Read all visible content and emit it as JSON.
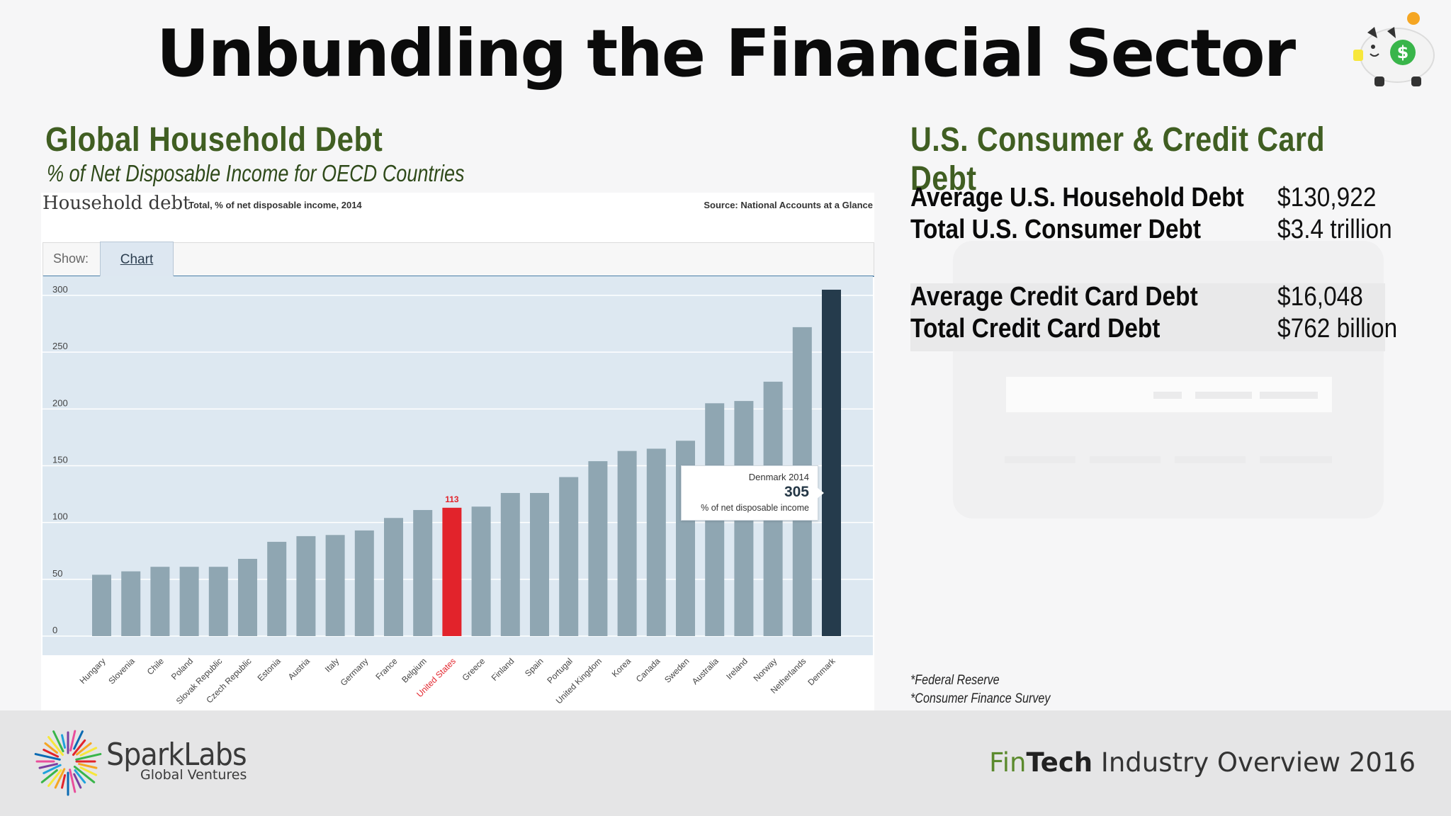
{
  "slide": {
    "title": "Unbundling the Financial Sector"
  },
  "left": {
    "section_title": "Global Household Debt",
    "subtitle": "% of Net Disposable Income for OECD Countries",
    "embedded_chart": {
      "heading": "Household debt",
      "subheading": "Total, % of net disposable income, 2014",
      "source": "Source: National Accounts at a Glance",
      "show_label": "Show:",
      "tab_label": "Chart",
      "tooltip": {
        "title": "Denmark 2014",
        "value": "305",
        "unit": "% of net disposable income"
      },
      "highlight_label": "113"
    }
  },
  "chart_data": {
    "type": "bar",
    "title": "Household debt",
    "subtitle": "Total, % of net disposable income, 2014",
    "ylim": [
      0,
      300
    ],
    "yticks": [
      0,
      50,
      100,
      150,
      200,
      250,
      300
    ],
    "grid": true,
    "categories": [
      "Hungary",
      "Slovenia",
      "Chile",
      "Poland",
      "Slovak Republic",
      "Czech Republic",
      "Estonia",
      "Austria",
      "Italy",
      "Germany",
      "France",
      "Belgium",
      "United States",
      "Greece",
      "Finland",
      "Spain",
      "Portugal",
      "United Kingdom",
      "Korea",
      "Canada",
      "Sweden",
      "Australia",
      "Ireland",
      "Norway",
      "Netherlands",
      "Denmark"
    ],
    "values": [
      54,
      57,
      61,
      61,
      61,
      68,
      83,
      88,
      89,
      93,
      104,
      111,
      113,
      114,
      126,
      126,
      140,
      154,
      163,
      165,
      172,
      205,
      207,
      224,
      272,
      305
    ],
    "highlight": "United States",
    "selected": "Denmark",
    "colors": {
      "bar": "#8fa6b2",
      "highlight": "#e2232b",
      "selected": "#253b4c"
    }
  },
  "right": {
    "section_title": "U.S. Consumer & Credit Card Debt",
    "stats": [
      {
        "label": "Average U.S. Household Debt",
        "value": "$130,922"
      },
      {
        "label": "Total U.S. Consumer Debt",
        "value": "$3.4 trillion"
      },
      {
        "label": "Average Credit Card Debt",
        "value": "$16,048"
      },
      {
        "label": "Total Credit Card Debt",
        "value": "$762 billion"
      }
    ],
    "footnotes": [
      "*Federal Reserve",
      "*Consumer Finance Survey"
    ]
  },
  "footer": {
    "brand_name": "SparkLabs",
    "brand_sub": "Global Ventures",
    "deck_fin": "Fin",
    "deck_tech": "Tech",
    "deck_rest": " Industry Overview 2016"
  },
  "icons": {
    "piggy_bank": "piggy-bank-icon",
    "brand_logo": "sparklabs-logo-icon"
  },
  "colors": {
    "section_title": "#405e22",
    "fin_accent": "#5b8a2d"
  }
}
